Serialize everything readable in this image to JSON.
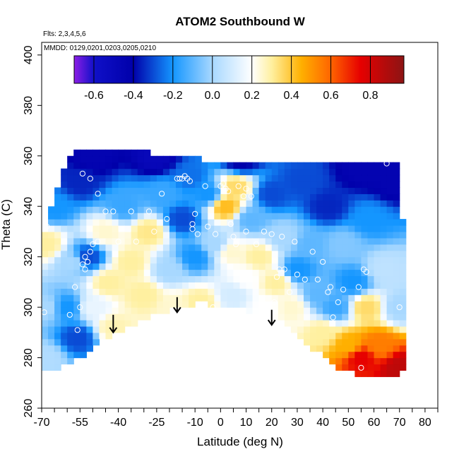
{
  "chart_data": {
    "type": "heatmap",
    "title": "ATOM2 Southbound W",
    "notes": [
      "Flts: 2,3,4,5,6",
      "MMDD: 0129,0201,0203,0205,0210"
    ],
    "xlabel": "Latitude (deg N)",
    "ylabel": "Theta (C)",
    "xlim": [
      -70,
      85
    ],
    "ylim": [
      260,
      405
    ],
    "x_ticks_major": [
      -70,
      -55,
      -40,
      -25,
      -10,
      0,
      10,
      20,
      30,
      40,
      50,
      60,
      70,
      80
    ],
    "x_tick_labels": [
      "-70",
      "-55",
      "-40",
      "-25",
      "-10",
      "0",
      "10",
      "20",
      "30",
      "40",
      "50",
      "60",
      "70",
      "80"
    ],
    "x_ticks_minor": [
      -65,
      -60,
      -50,
      -45,
      -35,
      -30,
      -20,
      -15,
      -5,
      5,
      15,
      25,
      35,
      45,
      55,
      65,
      75,
      85
    ],
    "y_ticks": [
      260,
      280,
      300,
      320,
      340,
      360,
      380,
      400
    ],
    "y_tick_labels": [
      "260",
      "280",
      "300",
      "320",
      "340",
      "360",
      "380",
      "400"
    ],
    "colorbar": {
      "range": [
        -0.7,
        0.97
      ],
      "ticks": [
        -0.6,
        -0.4,
        -0.2,
        0.0,
        0.2,
        0.4,
        0.6,
        0.8
      ],
      "tick_labels": [
        "-0.6",
        "-0.4",
        "-0.2",
        "0.0",
        "0.2",
        "0.4",
        "0.6",
        "0.8"
      ],
      "stops": [
        {
          "v": -0.7,
          "c": "#8c1ee6"
        },
        {
          "v": -0.6,
          "c": "#1010c8"
        },
        {
          "v": -0.4,
          "c": "#0000aa"
        },
        {
          "v": -0.2,
          "c": "#1496ff"
        },
        {
          "v": 0.0,
          "c": "#a8d8ff"
        },
        {
          "v": 0.2,
          "c": "#ffffff"
        },
        {
          "v": 0.3,
          "c": "#fff0a0"
        },
        {
          "v": 0.45,
          "c": "#ffb000"
        },
        {
          "v": 0.6,
          "c": "#ff6400"
        },
        {
          "v": 0.75,
          "c": "#e60000"
        },
        {
          "v": 0.97,
          "c": "#8c1414"
        }
      ]
    },
    "field": [
      {
        "lat": -68,
        "theta": 280,
        "w": 0.02
      },
      {
        "lat": -68,
        "theta": 300,
        "w": 0.0
      },
      {
        "lat": -68,
        "theta": 325,
        "w": 0.3
      },
      {
        "lat": -65,
        "theta": 340,
        "w": -0.2
      },
      {
        "lat": -60,
        "theta": 300,
        "w": -0.2
      },
      {
        "lat": -58,
        "theta": 318,
        "w": 0.0
      },
      {
        "lat": -56,
        "theta": 288,
        "w": -0.3
      },
      {
        "lat": -55,
        "theta": 350,
        "w": -0.35
      },
      {
        "lat": -52,
        "theta": 320,
        "w": -0.3
      },
      {
        "lat": -50,
        "theta": 300,
        "w": 0.15
      },
      {
        "lat": -50,
        "theta": 360,
        "w": -0.45
      },
      {
        "lat": -45,
        "theta": 330,
        "w": 0.25
      },
      {
        "lat": -44,
        "theta": 310,
        "w": 0.3
      },
      {
        "lat": -42,
        "theta": 292,
        "w": 0.28
      },
      {
        "lat": -38,
        "theta": 340,
        "w": -0.15
      },
      {
        "lat": -35,
        "theta": 318,
        "w": 0.3
      },
      {
        "lat": -30,
        "theta": 305,
        "w": 0.3
      },
      {
        "lat": -28,
        "theta": 330,
        "w": 0.32
      },
      {
        "lat": -25,
        "theta": 360,
        "w": -0.5
      },
      {
        "lat": -22,
        "theta": 345,
        "w": -0.15
      },
      {
        "lat": -20,
        "theta": 315,
        "w": 0.0
      },
      {
        "lat": -18,
        "theta": 300,
        "w": 0.25
      },
      {
        "lat": -15,
        "theta": 335,
        "w": -0.3
      },
      {
        "lat": -12,
        "theta": 352,
        "w": -0.25
      },
      {
        "lat": -10,
        "theta": 320,
        "w": -0.2
      },
      {
        "lat": -8,
        "theta": 302,
        "w": 0.3
      },
      {
        "lat": -5,
        "theta": 345,
        "w": -0.2
      },
      {
        "lat": -2,
        "theta": 325,
        "w": 0.0
      },
      {
        "lat": 2,
        "theta": 340,
        "w": 0.42
      },
      {
        "lat": 4,
        "theta": 322,
        "w": 0.25
      },
      {
        "lat": 5,
        "theta": 305,
        "w": 0.1
      },
      {
        "lat": 6,
        "theta": 348,
        "w": 0.35
      },
      {
        "lat": 8,
        "theta": 358,
        "w": -0.4
      },
      {
        "lat": 10,
        "theta": 312,
        "w": 0.2
      },
      {
        "lat": 12,
        "theta": 335,
        "w": -0.1
      },
      {
        "lat": 15,
        "theta": 320,
        "w": 0.3
      },
      {
        "lat": 18,
        "theta": 300,
        "w": 0.2
      },
      {
        "lat": 20,
        "theta": 345,
        "w": -0.3
      },
      {
        "lat": 22,
        "theta": 310,
        "w": 0.3
      },
      {
        "lat": 25,
        "theta": 328,
        "w": 0.0
      },
      {
        "lat": 28,
        "theta": 300,
        "w": 0.25
      },
      {
        "lat": 30,
        "theta": 315,
        "w": -0.2
      },
      {
        "lat": 32,
        "theta": 350,
        "w": -0.3
      },
      {
        "lat": 35,
        "theta": 325,
        "w": -0.1
      },
      {
        "lat": 38,
        "theta": 305,
        "w": -0.1
      },
      {
        "lat": 40,
        "theta": 290,
        "w": 0.3
      },
      {
        "lat": 42,
        "theta": 340,
        "w": -0.35
      },
      {
        "lat": 45,
        "theta": 300,
        "w": -0.15
      },
      {
        "lat": 48,
        "theta": 325,
        "w": -0.05
      },
      {
        "lat": 50,
        "theta": 285,
        "w": 0.45
      },
      {
        "lat": 52,
        "theta": 310,
        "w": -0.2
      },
      {
        "lat": 55,
        "theta": 355,
        "w": -0.45
      },
      {
        "lat": 55,
        "theta": 280,
        "w": 0.75
      },
      {
        "lat": 57,
        "theta": 300,
        "w": 0.35
      },
      {
        "lat": 58,
        "theta": 335,
        "w": -0.2
      },
      {
        "lat": 62,
        "theta": 285,
        "w": 0.55
      },
      {
        "lat": 64,
        "theta": 315,
        "w": 0.05
      },
      {
        "lat": 68,
        "theta": 350,
        "w": -0.45
      },
      {
        "lat": 70,
        "theta": 300,
        "w": 0.0
      },
      {
        "lat": 70,
        "theta": 276,
        "w": 0.85
      }
    ],
    "coverage": [
      [
        -69,
        275
      ],
      [
        -69,
        332
      ],
      [
        -67,
        338
      ],
      [
        -64,
        346
      ],
      [
        -62,
        352
      ],
      [
        -60,
        357
      ],
      [
        -58,
        362
      ],
      [
        -57,
        364
      ],
      [
        -55,
        362
      ],
      [
        -40,
        362
      ],
      [
        -30,
        362
      ],
      [
        -25,
        360
      ],
      [
        -10,
        359
      ],
      [
        0,
        358
      ],
      [
        10,
        358
      ],
      [
        20,
        358
      ],
      [
        35,
        358
      ],
      [
        45,
        358
      ],
      [
        55,
        358
      ],
      [
        66,
        358
      ],
      [
        71,
        356
      ],
      [
        72,
        275
      ],
      [
        70,
        272
      ],
      [
        62,
        272
      ],
      [
        55,
        273
      ],
      [
        45,
        276
      ],
      [
        38,
        282
      ],
      [
        30,
        290
      ],
      [
        20,
        297
      ],
      [
        10,
        299
      ],
      [
        0,
        300
      ],
      [
        -8,
        302
      ],
      [
        -15,
        300
      ],
      [
        -22,
        298
      ],
      [
        -30,
        295
      ],
      [
        -40,
        290
      ],
      [
        -50,
        284
      ],
      [
        -55,
        280
      ],
      [
        -60,
        277
      ],
      [
        -65,
        275
      ]
    ],
    "observations": [
      [
        -69,
        298
      ],
      [
        -68,
        332
      ],
      [
        -59,
        297
      ],
      [
        -57,
        308
      ],
      [
        -56,
        291
      ],
      [
        -55,
        300
      ],
      [
        -54,
        317
      ],
      [
        -53,
        320
      ],
      [
        -53,
        315
      ],
      [
        -52,
        318
      ],
      [
        -51,
        322
      ],
      [
        -50,
        325
      ],
      [
        -48,
        326
      ],
      [
        -54,
        353
      ],
      [
        -51,
        351
      ],
      [
        -48,
        345
      ],
      [
        -45,
        338
      ],
      [
        -42,
        338
      ],
      [
        -40,
        326
      ],
      [
        -35,
        338
      ],
      [
        -33,
        326
      ],
      [
        -28,
        338
      ],
      [
        -26,
        330
      ],
      [
        -23,
        345
      ],
      [
        -21,
        335
      ],
      [
        -17,
        351
      ],
      [
        -16,
        351
      ],
      [
        -15,
        351
      ],
      [
        -14,
        352
      ],
      [
        -13,
        351
      ],
      [
        -12,
        350
      ],
      [
        -11,
        333
      ],
      [
        -11,
        331
      ],
      [
        -10,
        337
      ],
      [
        -9,
        329
      ],
      [
        -6,
        348
      ],
      [
        -5,
        332
      ],
      [
        -3,
        300
      ],
      [
        -2,
        329
      ],
      [
        0,
        348
      ],
      [
        1,
        349
      ],
      [
        2,
        347
      ],
      [
        3,
        346
      ],
      [
        4,
        333
      ],
      [
        5,
        328
      ],
      [
        6,
        325
      ],
      [
        7,
        348
      ],
      [
        9,
        344
      ],
      [
        10,
        347
      ],
      [
        10,
        330
      ],
      [
        12,
        344
      ],
      [
        14,
        325
      ],
      [
        17,
        330
      ],
      [
        20,
        329
      ],
      [
        21,
        302
      ],
      [
        22,
        312
      ],
      [
        23,
        315
      ],
      [
        24,
        328
      ],
      [
        25,
        315
      ],
      [
        27,
        306
      ],
      [
        29,
        326
      ],
      [
        30,
        313
      ],
      [
        33,
        311
      ],
      [
        36,
        322
      ],
      [
        38,
        311
      ],
      [
        40,
        318
      ],
      [
        42,
        306
      ],
      [
        43,
        308
      ],
      [
        44,
        296
      ],
      [
        46,
        302
      ],
      [
        48,
        307
      ],
      [
        54,
        308
      ],
      [
        55,
        276
      ],
      [
        56,
        315
      ],
      [
        57,
        314
      ],
      [
        65,
        357
      ],
      [
        70,
        300
      ]
    ],
    "arrows": [
      {
        "lat": -42,
        "theta_top": 297,
        "theta_tip": 290
      },
      {
        "lat": -17,
        "theta_top": 304,
        "theta_tip": 298
      },
      {
        "lat": 20,
        "theta_top": 299,
        "theta_tip": 293
      }
    ]
  }
}
